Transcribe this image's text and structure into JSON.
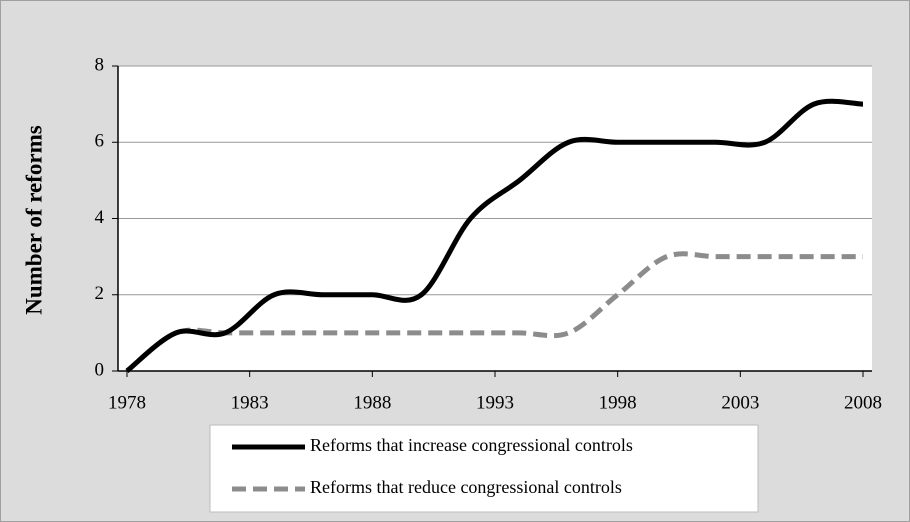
{
  "chart_data": {
    "type": "line",
    "ylabel": "Number of reforms",
    "x": [
      1978,
      1980,
      1982,
      1984,
      1986,
      1988,
      1990,
      1992,
      1994,
      1996,
      1998,
      2000,
      2002,
      2004,
      2006,
      2008
    ],
    "series": [
      {
        "name": "Reforms that increase congressional controls",
        "color": "#000000",
        "dash": "solid",
        "values": [
          0,
          1,
          1,
          2,
          2,
          2,
          2,
          4,
          5,
          6,
          6,
          6,
          6,
          6,
          7,
          7
        ]
      },
      {
        "name": "Reforms that reduce congressional controls",
        "color": "#8c8c8c",
        "dash": "dashed",
        "values": [
          0,
          1,
          1,
          1,
          1,
          1,
          1,
          1,
          1,
          1,
          2,
          3,
          3,
          3,
          3,
          3
        ]
      }
    ],
    "xlim": [
      1978,
      2008
    ],
    "xticks": [
      1978,
      1983,
      1988,
      1993,
      1998,
      2003,
      2008
    ],
    "ylim": [
      0,
      8
    ],
    "yticks": [
      0,
      2,
      4,
      6,
      8
    ],
    "grid": true,
    "legend": "bottom"
  }
}
